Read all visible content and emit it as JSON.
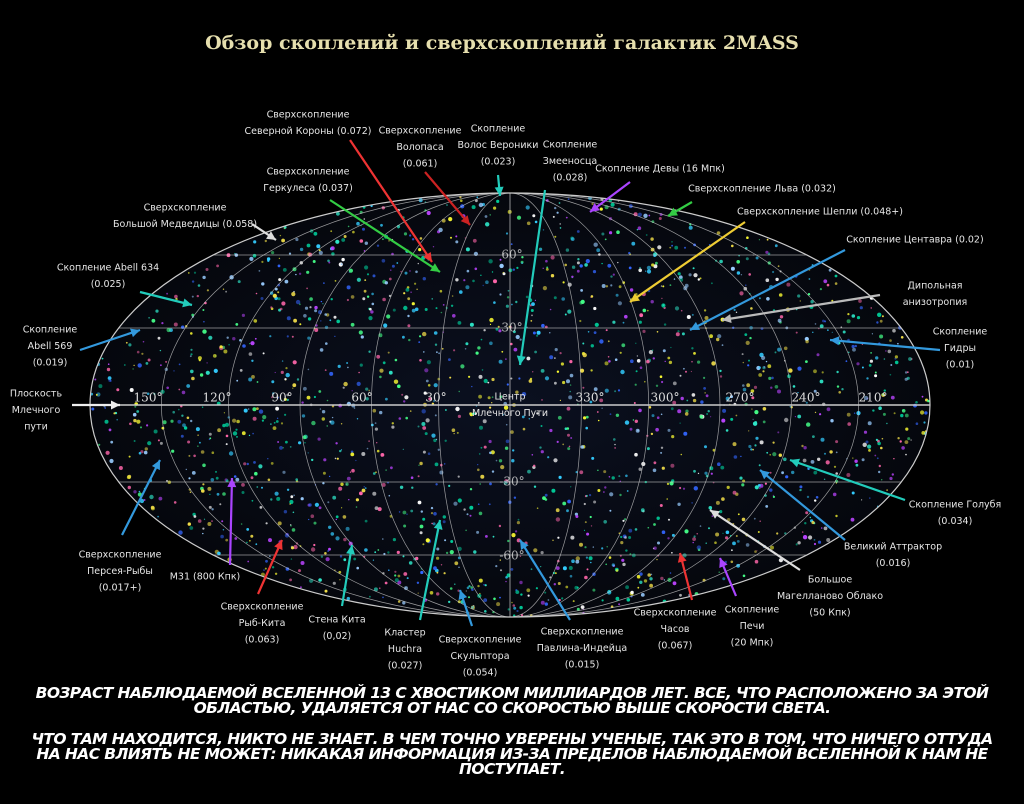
{
  "title": "Обзор скоплений и сверхскоплений галактик 2MASS",
  "labels": [
    {
      "lines": [
        "Сверхскопление",
        "Северной Короны (0.072)"
      ]
    },
    {
      "lines": [
        "Сверхскопление",
        "Волопаса",
        "(0.061)"
      ]
    },
    {
      "lines": [
        "Скопление",
        "Волос Вероники",
        "(0.023)"
      ]
    },
    {
      "lines": [
        "Скопление",
        "Змееносца",
        "(0.028)"
      ]
    },
    {
      "lines": [
        "Скопление Девы (16 Мпк)"
      ]
    },
    {
      "lines": [
        "Сверхскопление Льва (0.032)"
      ]
    },
    {
      "lines": [
        "Сверхскопление Шепли (0.048+)"
      ]
    },
    {
      "lines": [
        "Скопление Центавра (0.02)"
      ]
    },
    {
      "lines": [
        "Дипольная",
        "анизотропия"
      ]
    },
    {
      "lines": [
        "Скопление",
        "Гидры",
        "(0.01)"
      ]
    },
    {
      "lines": [
        "Сверхскопление",
        "Геркулеса (0.037)"
      ]
    },
    {
      "lines": [
        "Сверхскопление",
        "Большой Медведицы (0.058)"
      ]
    },
    {
      "lines": [
        "Скопление Abell 634",
        "(0.025)"
      ]
    },
    {
      "lines": [
        "Скопление",
        "Abell 569",
        "(0.019)"
      ]
    },
    {
      "lines": [
        "Плоскость",
        "Млечного",
        "пути"
      ]
    },
    {
      "lines": [
        "Центр",
        "Млечного Пути"
      ]
    },
    {
      "lines": [
        "Сверхскопление",
        "Персея-Рыбы",
        "(0.017+)"
      ]
    },
    {
      "lines": [
        "M31 (800 Кпк)"
      ]
    },
    {
      "lines": [
        "Сверхскопление",
        "Рыб-Кита",
        "(0.063)"
      ]
    },
    {
      "lines": [
        "Стена Кита",
        "(0,02)"
      ]
    },
    {
      "lines": [
        "Кластер",
        "Huchra",
        "(0.027)"
      ]
    },
    {
      "lines": [
        "Сверхскопление",
        "Скульптора",
        "(0.054)"
      ]
    },
    {
      "lines": [
        "Сверхскопление",
        "Павлина-Индейца",
        "(0.015)"
      ]
    },
    {
      "lines": [
        "Сверхскопление",
        "Часов",
        "(0.067)"
      ]
    },
    {
      "lines": [
        "Скопление",
        "Печи",
        "(20 Мпк)"
      ]
    },
    {
      "lines": [
        "Большое",
        "Магелланово Облако",
        "(50 Кпк)"
      ]
    },
    {
      "lines": [
        "Великий Аттрактор",
        "(0.016)"
      ]
    },
    {
      "lines": [
        "Скопление Голубя",
        "(0.034)"
      ]
    }
  ],
  "longitudes": [
    "150°",
    "120°",
    "90°",
    "60°",
    "30°",
    "330°",
    "300°",
    "270°",
    "240°",
    "210°"
  ],
  "latitudes": [
    "60°",
    "30°",
    "-30°",
    "-60°"
  ],
  "caption": [
    "ВОЗРАСТ НАБЛЮДАЕМОЙ ВСЕЛЕННОЙ 13 С ХВОСТИКОМ МИЛЛИАРДОВ ЛЕТ. ВСЕ, ЧТО РАСПОЛОЖЕНО ЗА ЭТОЙ ОБЛАСТЬЮ, УДАЛЯЕТСЯ ОТ НАС СО СКОРОСТЬЮ ВЫШЕ СКОРОСТИ СВЕТА.",
    "ЧТО ТАМ НАХОДИТСЯ, НИКТО НЕ ЗНАЕТ. В ЧЕМ ТОЧНО УВЕРЕНЫ УЧЕНЫЕ, ТАК ЭТО В ТОМ, ЧТО НИЧЕГО ОТТУДА НА НАС ВЛИЯТЬ НЕ МОЖЕТ: НИКАКАЯ ИНФОРМАЦИЯ ИЗ-ЗА ПРЕДЕЛОВ НАБЛЮДАЕМОЙ ВСЕЛЕННОЙ К НАМ НЕ ПОСТУПАЕТ."
  ]
}
